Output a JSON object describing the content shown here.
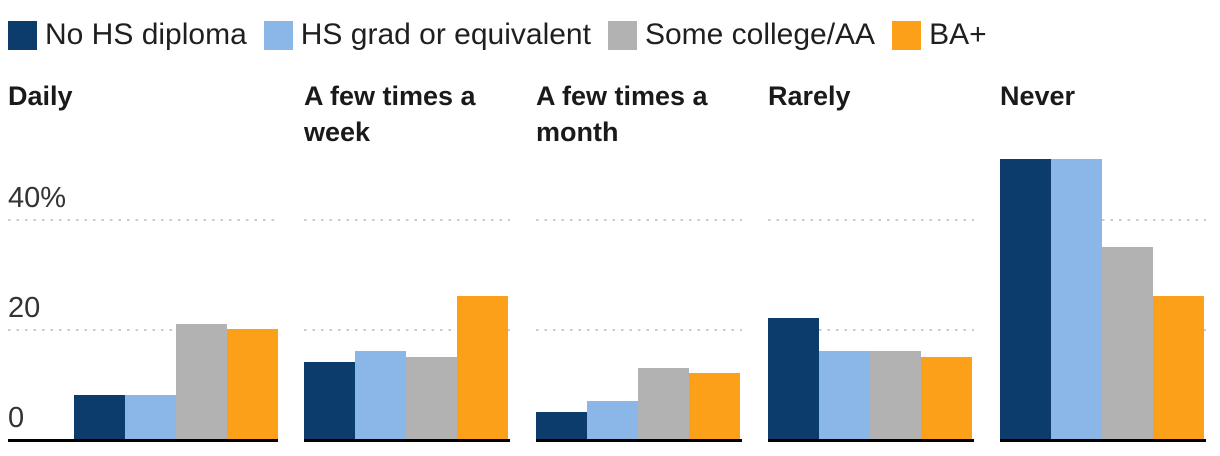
{
  "chart_data": {
    "type": "bar",
    "title": "",
    "unit": "%",
    "categories": [
      "Daily",
      "A few times a week",
      "A few times a month",
      "Rarely",
      "Never"
    ],
    "series": [
      {
        "name": "No HS diploma",
        "color": "#0C3C6C",
        "values": [
          8,
          14,
          5,
          22,
          51
        ]
      },
      {
        "name": "HS grad or equivalent",
        "color": "#8BB7E8",
        "values": [
          8,
          16,
          7,
          16,
          51
        ]
      },
      {
        "name": "Some college/AA",
        "color": "#B2B2B2",
        "values": [
          21,
          15,
          13,
          16,
          35
        ]
      },
      {
        "name": "BA+",
        "color": "#FCA019",
        "values": [
          20,
          26,
          12,
          15,
          26
        ]
      }
    ],
    "yticks": [
      {
        "label": "40%",
        "value": 40
      },
      {
        "label": "20",
        "value": 20
      },
      {
        "label": "0",
        "value": 0
      }
    ],
    "gridlines": [
      40,
      20
    ],
    "ylim": [
      0,
      52
    ],
    "legend_position": "top-left",
    "grid": "dotted-horizontal",
    "axis_line_color": "#000000",
    "gridline_color": "#cbcbcb"
  }
}
